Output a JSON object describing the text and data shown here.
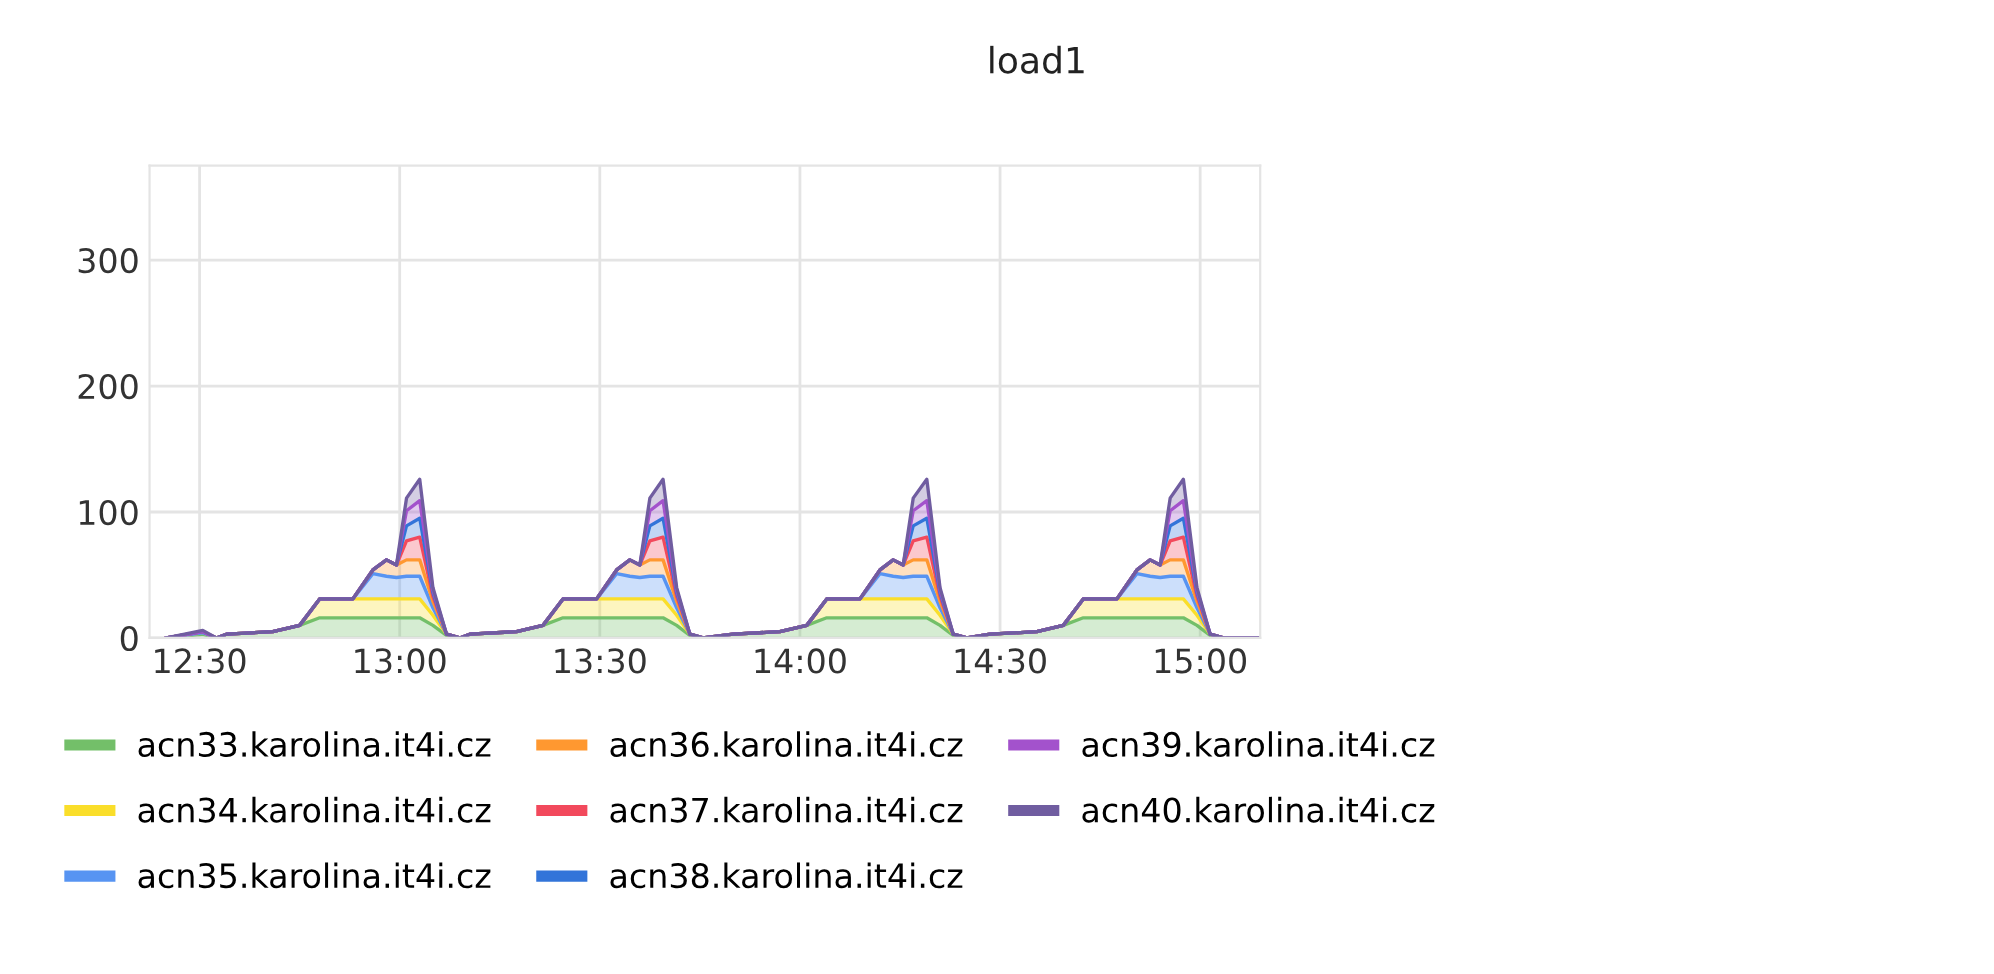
{
  "chart_data": {
    "type": "area",
    "title": "load1",
    "stacked": true,
    "grid": true,
    "legend": "bottom",
    "x": [
      12.417,
      12.508,
      12.542,
      12.567,
      12.683,
      12.75,
      12.8,
      12.883,
      12.933,
      12.967,
      12.992,
      13.017,
      13.05,
      13.083,
      13.117,
      13.15,
      13.175,
      13.292,
      13.358,
      13.408,
      13.492,
      13.542,
      13.575,
      13.6,
      13.625,
      13.658,
      13.692,
      13.725,
      13.758,
      13.833,
      13.95,
      14.017,
      14.067,
      14.15,
      14.2,
      14.233,
      14.258,
      14.283,
      14.317,
      14.35,
      14.383,
      14.417,
      14.475,
      14.592,
      14.658,
      14.708,
      14.792,
      14.842,
      14.875,
      14.9,
      14.925,
      14.958,
      14.992,
      15.025,
      15.058,
      15.15
    ],
    "xlim": [
      12.375,
      15.15
    ],
    "xticks": [
      {
        "value": 12.5,
        "label": "12:30"
      },
      {
        "value": 13,
        "label": "13:00"
      },
      {
        "value": 13.5,
        "label": "13:30"
      },
      {
        "value": 14,
        "label": "14:00"
      },
      {
        "value": 14.5,
        "label": "14:30"
      },
      {
        "value": 15,
        "label": "15:00"
      }
    ],
    "ylim": [
      0,
      375
    ],
    "yticks": [
      0,
      100,
      200,
      300
    ],
    "series": [
      {
        "name": "acn33.karolina.it4i.cz",
        "color": "#73bf69",
        "values": [
          0,
          3,
          0,
          3,
          5,
          10,
          16,
          16,
          16,
          16,
          16,
          16,
          16,
          10,
          2,
          0,
          3,
          5,
          10,
          16,
          16,
          16,
          16,
          16,
          16,
          16,
          10,
          2,
          0,
          3,
          5,
          10,
          16,
          16,
          16,
          16,
          16,
          16,
          16,
          10,
          2,
          0,
          3,
          5,
          10,
          16,
          16,
          16,
          16,
          16,
          16,
          16,
          10,
          2,
          0,
          0
        ]
      },
      {
        "name": "acn34.karolina.it4i.cz",
        "color": "#fade2a",
        "values": [
          0,
          1,
          0,
          0,
          0,
          0,
          15,
          15,
          15,
          15,
          15,
          15,
          15,
          8,
          1,
          0,
          0,
          0,
          0,
          15,
          15,
          15,
          15,
          15,
          15,
          15,
          8,
          1,
          0,
          0,
          0,
          0,
          15,
          15,
          15,
          15,
          15,
          15,
          15,
          8,
          1,
          0,
          0,
          0,
          0,
          15,
          15,
          15,
          15,
          15,
          15,
          15,
          8,
          1,
          0,
          0
        ]
      },
      {
        "name": "acn35.karolina.it4i.cz",
        "color": "#5794f2",
        "values": [
          0,
          0,
          0,
          0,
          0,
          0,
          0,
          0,
          20,
          18,
          17,
          18,
          18,
          6,
          0,
          0,
          0,
          0,
          0,
          0,
          0,
          20,
          18,
          17,
          18,
          18,
          6,
          0,
          0,
          0,
          0,
          0,
          0,
          0,
          20,
          18,
          17,
          18,
          18,
          6,
          0,
          0,
          0,
          0,
          0,
          0,
          0,
          20,
          18,
          17,
          18,
          18,
          6,
          0,
          0,
          0
        ]
      },
      {
        "name": "acn36.karolina.it4i.cz",
        "color": "#ff9830",
        "values": [
          0,
          1,
          0,
          0,
          0,
          0,
          0,
          0,
          3,
          13,
          10,
          13,
          13,
          5,
          0,
          0,
          0,
          0,
          0,
          0,
          0,
          3,
          13,
          10,
          13,
          13,
          5,
          0,
          0,
          0,
          0,
          0,
          0,
          0,
          3,
          13,
          10,
          13,
          13,
          5,
          0,
          0,
          0,
          0,
          0,
          0,
          0,
          3,
          13,
          10,
          13,
          13,
          5,
          0,
          0,
          0
        ]
      },
      {
        "name": "acn37.karolina.it4i.cz",
        "color": "#f2495c",
        "values": [
          0,
          0,
          0,
          0,
          0,
          0,
          0,
          0,
          0,
          0,
          0,
          15,
          18,
          4,
          0,
          0,
          0,
          0,
          0,
          0,
          0,
          0,
          0,
          0,
          15,
          18,
          4,
          0,
          0,
          0,
          0,
          0,
          0,
          0,
          0,
          0,
          0,
          15,
          18,
          4,
          0,
          0,
          0,
          0,
          0,
          0,
          0,
          0,
          0,
          0,
          15,
          18,
          4,
          0,
          0,
          0
        ]
      },
      {
        "name": "acn38.karolina.it4i.cz",
        "color": "#3274d9",
        "values": [
          0,
          0,
          0,
          0,
          0,
          0,
          0,
          0,
          0,
          0,
          0,
          12,
          15,
          3,
          0,
          0,
          0,
          0,
          0,
          0,
          0,
          0,
          0,
          0,
          12,
          15,
          3,
          0,
          0,
          0,
          0,
          0,
          0,
          0,
          0,
          0,
          0,
          12,
          15,
          3,
          0,
          0,
          0,
          0,
          0,
          0,
          0,
          0,
          0,
          0,
          12,
          15,
          3,
          0,
          0,
          0
        ]
      },
      {
        "name": "acn39.karolina.it4i.cz",
        "color": "#a352cc",
        "values": [
          0,
          0,
          0,
          0,
          0,
          0,
          0,
          0,
          0,
          0,
          0,
          12,
          14,
          2,
          0,
          0,
          0,
          0,
          0,
          0,
          0,
          0,
          0,
          0,
          12,
          14,
          2,
          0,
          0,
          0,
          0,
          0,
          0,
          0,
          0,
          0,
          0,
          12,
          14,
          2,
          0,
          0,
          0,
          0,
          0,
          0,
          0,
          0,
          0,
          0,
          12,
          14,
          2,
          0,
          0,
          0
        ]
      },
      {
        "name": "acn40.karolina.it4i.cz",
        "color": "#705da0",
        "values": [
          0,
          1,
          0,
          0,
          0,
          0,
          0,
          0,
          0,
          0,
          0,
          10,
          17,
          2,
          0,
          0,
          0,
          0,
          0,
          0,
          0,
          0,
          0,
          0,
          10,
          17,
          2,
          0,
          0,
          0,
          0,
          0,
          0,
          0,
          0,
          0,
          0,
          10,
          17,
          2,
          0,
          0,
          0,
          0,
          0,
          0,
          0,
          0,
          0,
          0,
          10,
          17,
          2,
          0,
          0,
          0
        ]
      }
    ]
  }
}
